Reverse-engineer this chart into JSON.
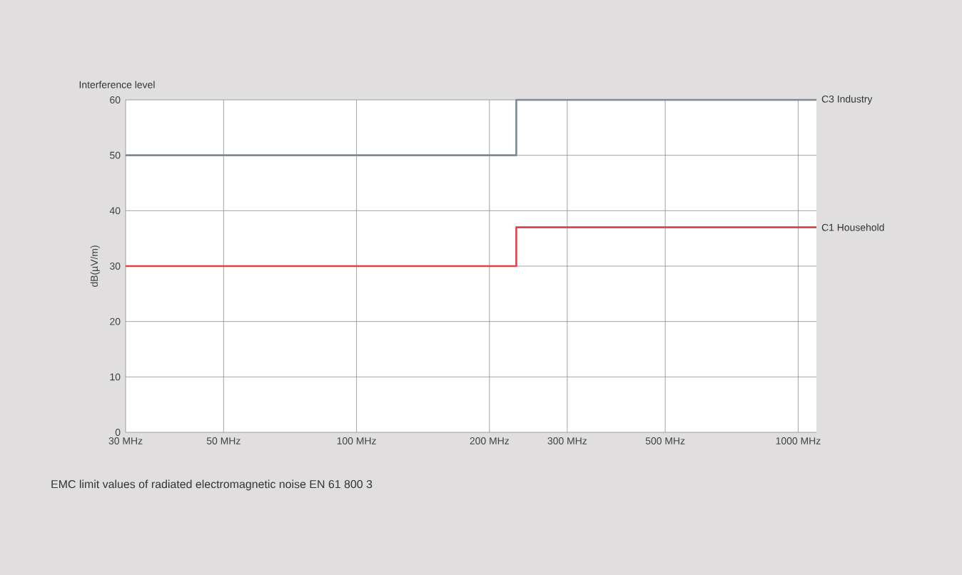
{
  "chart_data": {
    "type": "step",
    "title": "Interference level",
    "ylabel": "dB(µV/m)",
    "annotations": [
      "EMC limit values of radiated electromagnetic noise EN 61 800 3"
    ],
    "series": [
      {
        "name": "C3 Industry",
        "color": "#7d8a92",
        "x": [
          30,
          230,
          1100
        ],
        "values": [
          50,
          60,
          60
        ]
      },
      {
        "name": "C1 Household",
        "color": "#d9454f",
        "x": [
          30,
          230,
          1100
        ],
        "values": [
          30,
          37,
          37
        ]
      }
    ],
    "log": "x",
    "xlim": [
      30,
      1100
    ],
    "ylim": [
      0,
      60
    ],
    "xticks": [
      {
        "value": 30,
        "label": "30 MHz"
      },
      {
        "value": 50,
        "label": "50 MHz"
      },
      {
        "value": 100,
        "label": "100 MHz"
      },
      {
        "value": 200,
        "label": "200 MHz"
      },
      {
        "value": 300,
        "label": "300 MHz"
      },
      {
        "value": 500,
        "label": "500 MHz"
      },
      {
        "value": 1000,
        "label": "1000 MHz"
      }
    ],
    "yticks": [
      0,
      10,
      20,
      30,
      40,
      50,
      60
    ],
    "grid": true
  }
}
